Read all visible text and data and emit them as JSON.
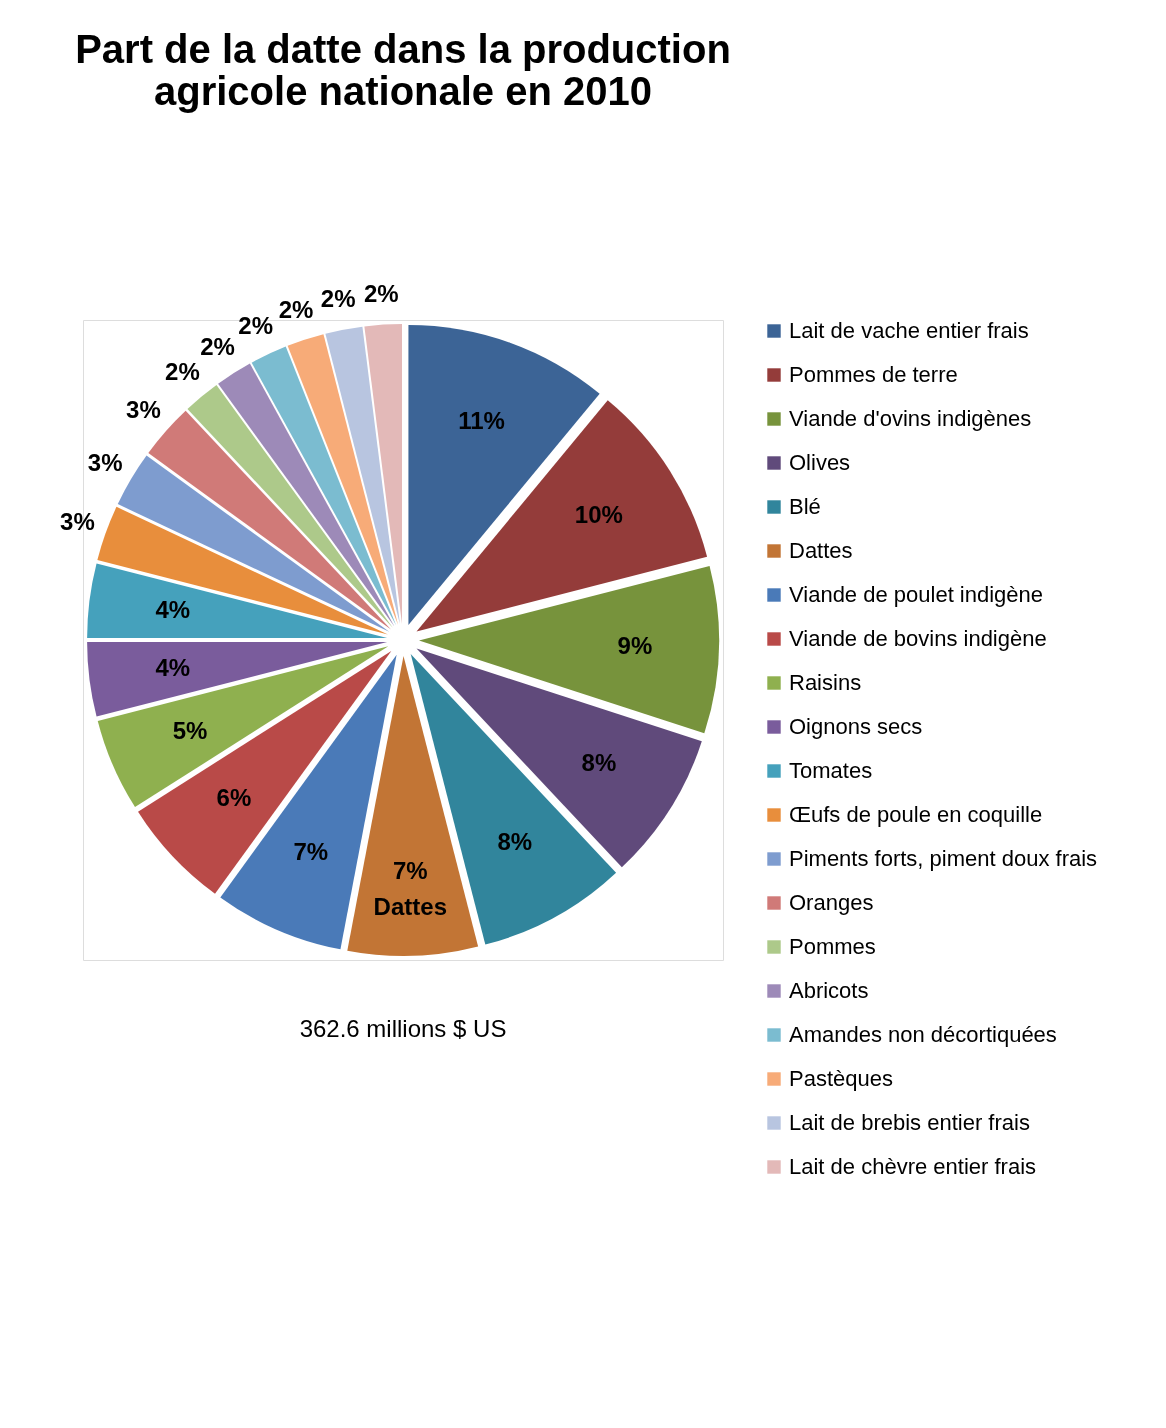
{
  "chart_data": {
    "type": "pie",
    "title": "Part de la datte dans la production agricole nationale  en 2010",
    "categories": [
      "Lait de vache entier frais",
      "Pommes de terre",
      "Viande d'ovins indigènes",
      "Olives",
      "Blé",
      "Dattes",
      "Viande de poulet indigène",
      "Viande de bovins indigène",
      "Raisins",
      "Oignons secs",
      "Tomates",
      "Œufs de poule en coquille",
      "Piments forts, piment doux frais",
      "Oranges",
      "Pommes",
      "Abricots",
      "Amandes non décortiquées",
      "Pastèques",
      "Lait de brebis entier frais",
      "Lait de chèvre entier frais"
    ],
    "values": [
      11,
      10,
      9,
      8,
      8,
      7,
      7,
      6,
      5,
      4,
      4,
      3,
      3,
      3,
      2,
      2,
      2,
      2,
      2,
      2
    ],
    "colors": [
      "#3c6496",
      "#943c3a",
      "#77933c",
      "#604a7b",
      "#31859c",
      "#c27535",
      "#4a7ab8",
      "#b94a48",
      "#8fb04f",
      "#7a5c9c",
      "#45a1bc",
      "#e88e3c",
      "#7e9ccf",
      "#d07a78",
      "#adc98a",
      "#9d8ab8",
      "#7bbcd0",
      "#f7ab78",
      "#b8c5e0",
      "#e3b9b8"
    ],
    "value_labels": [
      "11%",
      "10%",
      "9%",
      "8%",
      "8%",
      "7%",
      "7%",
      "6%",
      "5%",
      "4%",
      "4%",
      "3%",
      "3%",
      "3%",
      "2%",
      "2%",
      "2%",
      "2%",
      "2%",
      "2%"
    ],
    "legend": "right",
    "annotations": [
      {
        "text": "Dattes",
        "x": "Dattes"
      },
      "362.6 millions $ US"
    ]
  }
}
